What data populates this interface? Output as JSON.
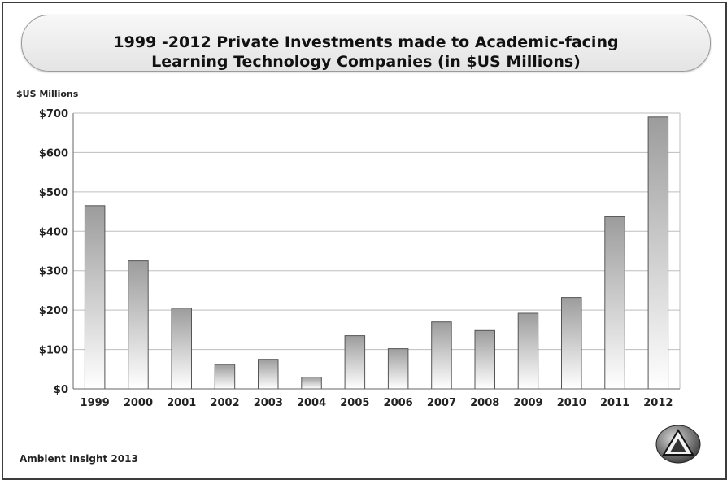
{
  "header": {
    "title_line1": "1999 -2012 Private Investments made to Academic-facing",
    "title_line2": "Learning Technology Companies (in $US Millions)"
  },
  "footer": {
    "source": "Ambient Insight 2013",
    "logo_icon": "triangle-a-logo-icon"
  },
  "chart_data": {
    "type": "bar",
    "title": "1999 -2012 Private Investments made to Academic-facing Learning Technology Companies (in $US Millions)",
    "ylabel": "$US Millions",
    "xlabel": "",
    "categories": [
      "1999",
      "2000",
      "2001",
      "2002",
      "2003",
      "2004",
      "2005",
      "2006",
      "2007",
      "2008",
      "2009",
      "2010",
      "2011",
      "2012"
    ],
    "values": [
      465,
      325,
      205,
      62,
      75,
      30,
      135,
      102,
      170,
      148,
      192,
      232,
      437,
      690
    ],
    "ylim": [
      0,
      700
    ],
    "yticks": [
      0,
      100,
      200,
      300,
      400,
      500,
      600,
      700
    ],
    "ytick_labels": [
      "$0",
      "$100",
      "$200",
      "$300",
      "$400",
      "$500",
      "$600",
      "$700"
    ],
    "grid": true,
    "legend": "none",
    "colors": {
      "bar_fill_top": "#9c9c9c",
      "bar_fill_bottom": "#ffffff",
      "bar_stroke": "#555555",
      "grid": "#bdbdbd",
      "axis": "#666666"
    }
  }
}
